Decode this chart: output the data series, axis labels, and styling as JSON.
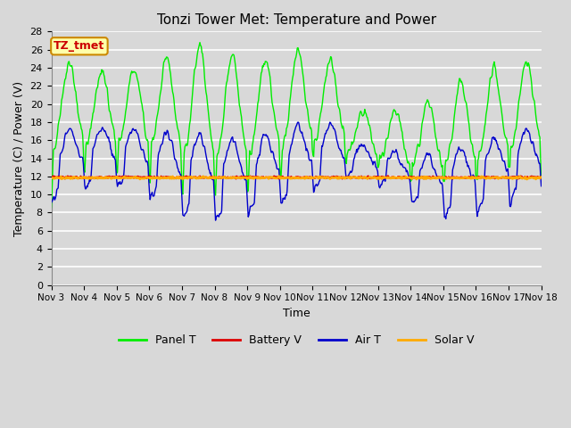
{
  "title": "Tonzi Tower Met: Temperature and Power",
  "xlabel": "Time",
  "ylabel": "Temperature (C) / Power (V)",
  "ylim": [
    0,
    28
  ],
  "yticks": [
    0,
    2,
    4,
    6,
    8,
    10,
    12,
    14,
    16,
    18,
    20,
    22,
    24,
    26,
    28
  ],
  "xtick_labels": [
    "Nov 3",
    "Nov 4",
    "Nov 5",
    "Nov 6",
    "Nov 7",
    "Nov 8",
    "Nov 9",
    "Nov 10",
    "Nov 11",
    "Nov 12",
    "Nov 13",
    "Nov 14",
    "Nov 15",
    "Nov 16",
    "Nov 17",
    "Nov 18"
  ],
  "background_color": "#d8d8d8",
  "plot_bg_color": "#d8d8d8",
  "grid_color": "#ffffff",
  "panel_t_color": "#00ee00",
  "air_t_color": "#0000cc",
  "battery_v_color": "#dd0000",
  "solar_v_color": "#ffaa00",
  "annotation_text": "TZ_tmet",
  "annotation_bg": "#ffffaa",
  "annotation_border": "#cc8800",
  "annotation_text_color": "#cc0000",
  "title_fontsize": 11,
  "label_fontsize": 9,
  "tick_fontsize": 8
}
